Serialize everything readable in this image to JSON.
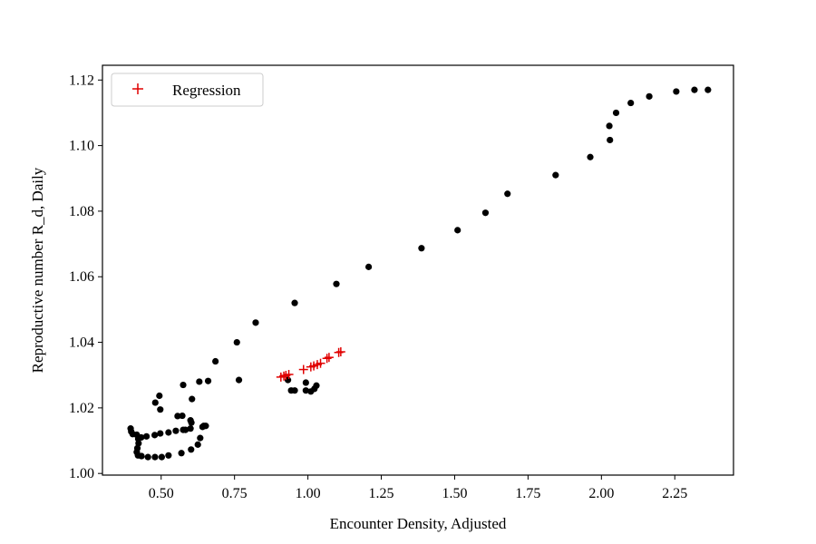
{
  "chart_data": {
    "type": "scatter",
    "xlabel": "Encounter Density, Adjusted",
    "ylabel": "Reproductive number R_d, Daily",
    "xlim": [
      0.3,
      2.45
    ],
    "ylim": [
      0.9995,
      1.1245
    ],
    "x_ticks": [
      0.5,
      0.75,
      1.0,
      1.25,
      1.5,
      1.75,
      2.0,
      2.25
    ],
    "x_tick_labels": [
      "0.50",
      "0.75",
      "1.00",
      "1.25",
      "1.50",
      "1.75",
      "2.00",
      "2.25"
    ],
    "y_ticks": [
      1.0,
      1.02,
      1.04,
      1.06,
      1.08,
      1.1,
      1.12
    ],
    "y_tick_labels": [
      "1.00",
      "1.02",
      "1.04",
      "1.06",
      "1.08",
      "1.10",
      "1.12"
    ],
    "grid": false,
    "legend": {
      "position": "top-left",
      "entries": [
        {
          "label": "Regression",
          "marker": "plus",
          "color": "#e00000"
        }
      ]
    },
    "series": [
      {
        "marker": "dot",
        "color": "#000000",
        "points": [
          [
            2.363,
            1.117
          ],
          [
            2.317,
            1.117
          ],
          [
            2.255,
            1.1165
          ],
          [
            2.163,
            1.115
          ],
          [
            2.1,
            1.113
          ],
          [
            2.05,
            1.11
          ],
          [
            2.027,
            1.106
          ],
          [
            2.029,
            1.1017
          ],
          [
            1.962,
            1.0965
          ],
          [
            1.844,
            1.091
          ],
          [
            1.68,
            1.0853
          ],
          [
            1.605,
            1.0795
          ],
          [
            1.51,
            1.0742
          ],
          [
            1.387,
            1.0687
          ],
          [
            1.207,
            1.063
          ],
          [
            1.097,
            1.0578
          ],
          [
            0.955,
            1.052
          ],
          [
            0.822,
            1.046
          ],
          [
            0.758,
            1.04
          ],
          [
            0.685,
            1.0342
          ],
          [
            0.765,
            1.0285
          ],
          [
            0.66,
            1.0282
          ],
          [
            0.63,
            1.028
          ],
          [
            0.575,
            1.027
          ],
          [
            0.494,
            1.0237
          ],
          [
            0.605,
            1.0227
          ],
          [
            0.48,
            1.0216
          ],
          [
            0.497,
            1.0195
          ],
          [
            0.556,
            1.0175
          ],
          [
            0.572,
            1.0176
          ],
          [
            0.6,
            1.0162
          ],
          [
            0.603,
            1.0155
          ],
          [
            0.645,
            1.0145
          ],
          [
            0.652,
            1.0145
          ],
          [
            0.641,
            1.0142
          ],
          [
            0.575,
            1.0133
          ],
          [
            0.583,
            1.0133
          ],
          [
            0.6,
            1.0137
          ],
          [
            0.55,
            1.013
          ],
          [
            0.525,
            1.0125
          ],
          [
            0.497,
            1.0122
          ],
          [
            0.478,
            1.0117
          ],
          [
            0.45,
            1.0113
          ],
          [
            0.432,
            1.011
          ],
          [
            0.417,
            1.0118
          ],
          [
            0.398,
            1.0128
          ],
          [
            0.396,
            1.0137
          ],
          [
            0.403,
            1.012
          ],
          [
            0.422,
            1.0105
          ],
          [
            0.423,
            1.0092
          ],
          [
            0.419,
            1.0077
          ],
          [
            0.417,
            1.0065
          ],
          [
            0.421,
            1.0055
          ],
          [
            0.433,
            1.0053
          ],
          [
            0.455,
            1.005
          ],
          [
            0.479,
            1.005
          ],
          [
            0.502,
            1.005
          ],
          [
            0.525,
            1.0055
          ],
          [
            0.569,
            1.0062
          ],
          [
            0.602,
            1.0073
          ],
          [
            0.625,
            1.0088
          ],
          [
            0.633,
            1.0108
          ],
          [
            0.932,
            1.0285
          ],
          [
            0.943,
            1.0253
          ],
          [
            0.955,
            1.0253
          ],
          [
            0.993,
            1.0253
          ],
          [
            0.993,
            1.0277
          ],
          [
            1.01,
            1.025
          ],
          [
            1.022,
            1.0258
          ],
          [
            1.029,
            1.0268
          ]
        ]
      },
      {
        "name": "Regression",
        "marker": "plus",
        "color": "#e00000",
        "points": [
          [
            0.908,
            1.0294
          ],
          [
            0.918,
            1.0297
          ],
          [
            0.925,
            1.0299
          ],
          [
            0.935,
            1.0302
          ],
          [
            0.985,
            1.0317
          ],
          [
            1.01,
            1.0325
          ],
          [
            1.02,
            1.0328
          ],
          [
            1.032,
            1.0332
          ],
          [
            1.043,
            1.0336
          ],
          [
            1.065,
            1.0351
          ],
          [
            1.072,
            1.0354
          ],
          [
            1.105,
            1.0369
          ],
          [
            1.112,
            1.0371
          ]
        ]
      }
    ]
  }
}
